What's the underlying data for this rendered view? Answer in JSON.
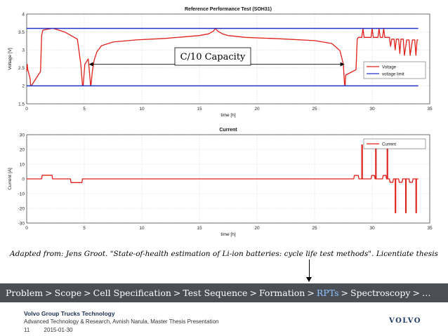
{
  "chart_data": [
    {
      "type": "line",
      "title": "Reference Performance Test (SOH31)",
      "xlabel": "time [h]",
      "ylabel": "Voltage [V]",
      "xlim": [
        0,
        35
      ],
      "ylim": [
        1.5,
        4
      ],
      "xticks": [
        0,
        5,
        10,
        15,
        20,
        25,
        30,
        35
      ],
      "yticks": [
        1.5,
        2,
        2.5,
        3,
        3.5,
        4
      ],
      "grid": true,
      "legend_position": "right",
      "annotation": "C/10 Capacity",
      "annotation_span": [
        5.4,
        27.6
      ],
      "series": [
        {
          "name": "Voltage",
          "color": "#e0201b",
          "x": [
            0,
            0.05,
            0.1,
            0.3,
            0.35,
            0.4,
            1.2,
            1.3,
            1.4,
            2.2,
            2.3,
            3.3,
            4.4,
            4.7,
            4.85,
            4.9,
            5.05,
            5.35,
            5.5,
            5.55,
            5.6,
            5.7,
            5.85,
            6.1,
            6.5,
            7.5,
            9.5,
            12,
            15,
            15.8,
            16.2,
            16.4,
            16.6,
            17,
            17.5,
            19,
            22,
            25,
            26.5,
            27.2,
            27.5,
            27.6,
            27.65,
            27.7,
            28.6,
            28.7,
            28.8,
            29.1,
            29.2,
            29.3,
            29.5,
            29.9,
            30,
            30.1,
            30.5,
            30.6,
            30.7,
            30.9,
            31,
            31.1,
            31.5,
            31.6,
            31.7,
            31.9,
            32,
            32.1,
            32.3,
            32.4,
            32.5,
            32.7,
            32.8,
            33,
            33.2,
            33.3,
            33.5,
            33.7,
            33.8,
            33.9,
            34
          ],
          "y": [
            2.4,
            2.6,
            2.45,
            2.2,
            2.0,
            2.0,
            2.4,
            3.4,
            3.55,
            3.6,
            3.6,
            3.5,
            3.3,
            2.6,
            2.0,
            2.0,
            2.6,
            2.75,
            2.2,
            2.0,
            2.05,
            2.4,
            2.7,
            2.95,
            3.12,
            3.22,
            3.28,
            3.32,
            3.4,
            3.45,
            3.52,
            3.6,
            3.52,
            3.45,
            3.4,
            3.35,
            3.31,
            3.26,
            3.18,
            2.98,
            2.6,
            2.05,
            2.0,
            2.3,
            2.45,
            3.3,
            3.35,
            3.35,
            3.6,
            3.35,
            3.35,
            3.35,
            3.6,
            3.35,
            3.35,
            3.6,
            3.35,
            3.35,
            3.6,
            3.35,
            3.35,
            3.1,
            3.3,
            3.3,
            3.0,
            3.3,
            3.3,
            2.9,
            3.3,
            3.3,
            2.85,
            3.28,
            3.28,
            2.85,
            3.28,
            3.28,
            2.85,
            3.28,
            3.28
          ]
        },
        {
          "name": "voltage limit",
          "color": "#2233cc",
          "segments": [
            {
              "x": [
                0,
                34
              ],
              "y": [
                3.6,
                3.6
              ]
            },
            {
              "x": [
                0,
                34
              ],
              "y": [
                2.0,
                2.0
              ]
            }
          ]
        }
      ]
    },
    {
      "type": "line",
      "title": "Current",
      "xlabel": "time [h]",
      "ylabel": "Current [A]",
      "xlim": [
        0,
        35
      ],
      "ylim": [
        -30,
        30
      ],
      "xticks": [
        0,
        5,
        10,
        15,
        20,
        25,
        30,
        35
      ],
      "yticks": [
        -30,
        -20,
        -10,
        0,
        10,
        20,
        30
      ],
      "grid": true,
      "legend_position": "top-right",
      "series": [
        {
          "name": "Current",
          "color": "#e0201b",
          "x": [
            0,
            1.3,
            1.35,
            2.2,
            2.25,
            3.8,
            3.85,
            4.8,
            4.85,
            5.5,
            5.55,
            28.4,
            28.45,
            28.8,
            28.85,
            29.1,
            29.1,
            29.15,
            29.15,
            29.9,
            29.95,
            30.2,
            30.25,
            30.3,
            30.3,
            30.35,
            30.35,
            30.9,
            30.95,
            31.2,
            31.25,
            31.3,
            31.3,
            31.35,
            31.35,
            31.5,
            31.55,
            31.8,
            31.85,
            32.0,
            32.0,
            32.05,
            32.05,
            32.3,
            32.35,
            32.6,
            32.65,
            32.9,
            32.9,
            32.95,
            32.95,
            33.2,
            33.25,
            33.5,
            33.55,
            33.8,
            33.8,
            33.85,
            33.85,
            34
          ],
          "y": [
            0,
            0,
            2.5,
            2.5,
            0,
            0,
            -2.5,
            -2.5,
            0,
            0,
            0,
            0,
            2.3,
            2.3,
            0,
            0,
            23,
            23,
            0,
            0,
            2.3,
            2.3,
            0,
            0,
            23,
            23,
            0,
            0,
            2.3,
            2.3,
            0,
            0,
            23,
            23,
            0,
            0,
            -2.3,
            -2.3,
            0,
            0,
            -23,
            -23,
            0,
            0,
            -2.3,
            -2.3,
            0,
            0,
            -23,
            -23,
            0,
            0,
            -2.3,
            -2.3,
            0,
            0,
            -23,
            -23,
            0,
            0
          ]
        }
      ]
    }
  ],
  "caption": "Adapted from: Jens Groot. \"State-of-health estimation of Li-ion batteries: cycle life test methods\". Licentiate thesis",
  "nav": {
    "items": [
      {
        "label": "Problem",
        "active": false
      },
      {
        "label": "Scope",
        "active": false
      },
      {
        "label": "Cell Specification",
        "active": false
      },
      {
        "label": "Test Sequence",
        "active": false
      },
      {
        "label": "Formation",
        "active": false
      },
      {
        "label": "RPTs",
        "active": true
      },
      {
        "label": "Spectroscopy",
        "active": false
      },
      {
        "label": "…",
        "active": false
      }
    ],
    "separator": ">"
  },
  "footer": {
    "company": "Volvo Group Trucks Technology",
    "line": "Advanced Technology & Research, Avnish Narula, Master Thesis Presentation",
    "page_number": "11",
    "date": "2015-01-30",
    "logo_text": "VOLVO"
  },
  "colors": {
    "voltage": "#e0201b",
    "limit": "#2233cc",
    "nav_bg": "#4b4f55",
    "nav_active": "#8fc1ff"
  }
}
